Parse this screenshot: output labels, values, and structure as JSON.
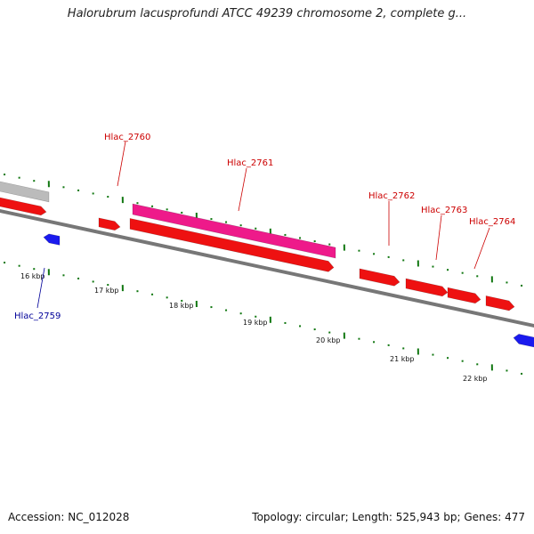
{
  "title": "Halorubrum lacusprofundi ATCC 49239 chromosome 2, complete g...",
  "footer": {
    "accession": "Accession: NC_012028",
    "stats": "Topology: circular; Length: 525,943 bp; Genes: 477"
  },
  "colors": {
    "forward_gene": "#ee1111",
    "reverse_gene": "#1a1aee",
    "highlight_gene": "#ee1a8a",
    "grey_feature": "#bbbbbb",
    "backbone": "#777777",
    "ticks": "#117711",
    "forward_label": "#cc0000",
    "reverse_label": "#000099"
  },
  "scale": {
    "labels": [
      "16 kbp",
      "17 kbp",
      "18 kbp",
      "19 kbp",
      "20 kbp",
      "21 kbp",
      "22 kbp"
    ]
  },
  "gene_labels": [
    {
      "id": "Hlac_2759",
      "strand": "reverse"
    },
    {
      "id": "Hlac_2760",
      "strand": "forward"
    },
    {
      "id": "Hlac_2761",
      "strand": "forward"
    },
    {
      "id": "Hlac_2762",
      "strand": "forward"
    },
    {
      "id": "Hlac_2763",
      "strand": "forward"
    },
    {
      "id": "Hlac_2764",
      "strand": "forward"
    }
  ]
}
